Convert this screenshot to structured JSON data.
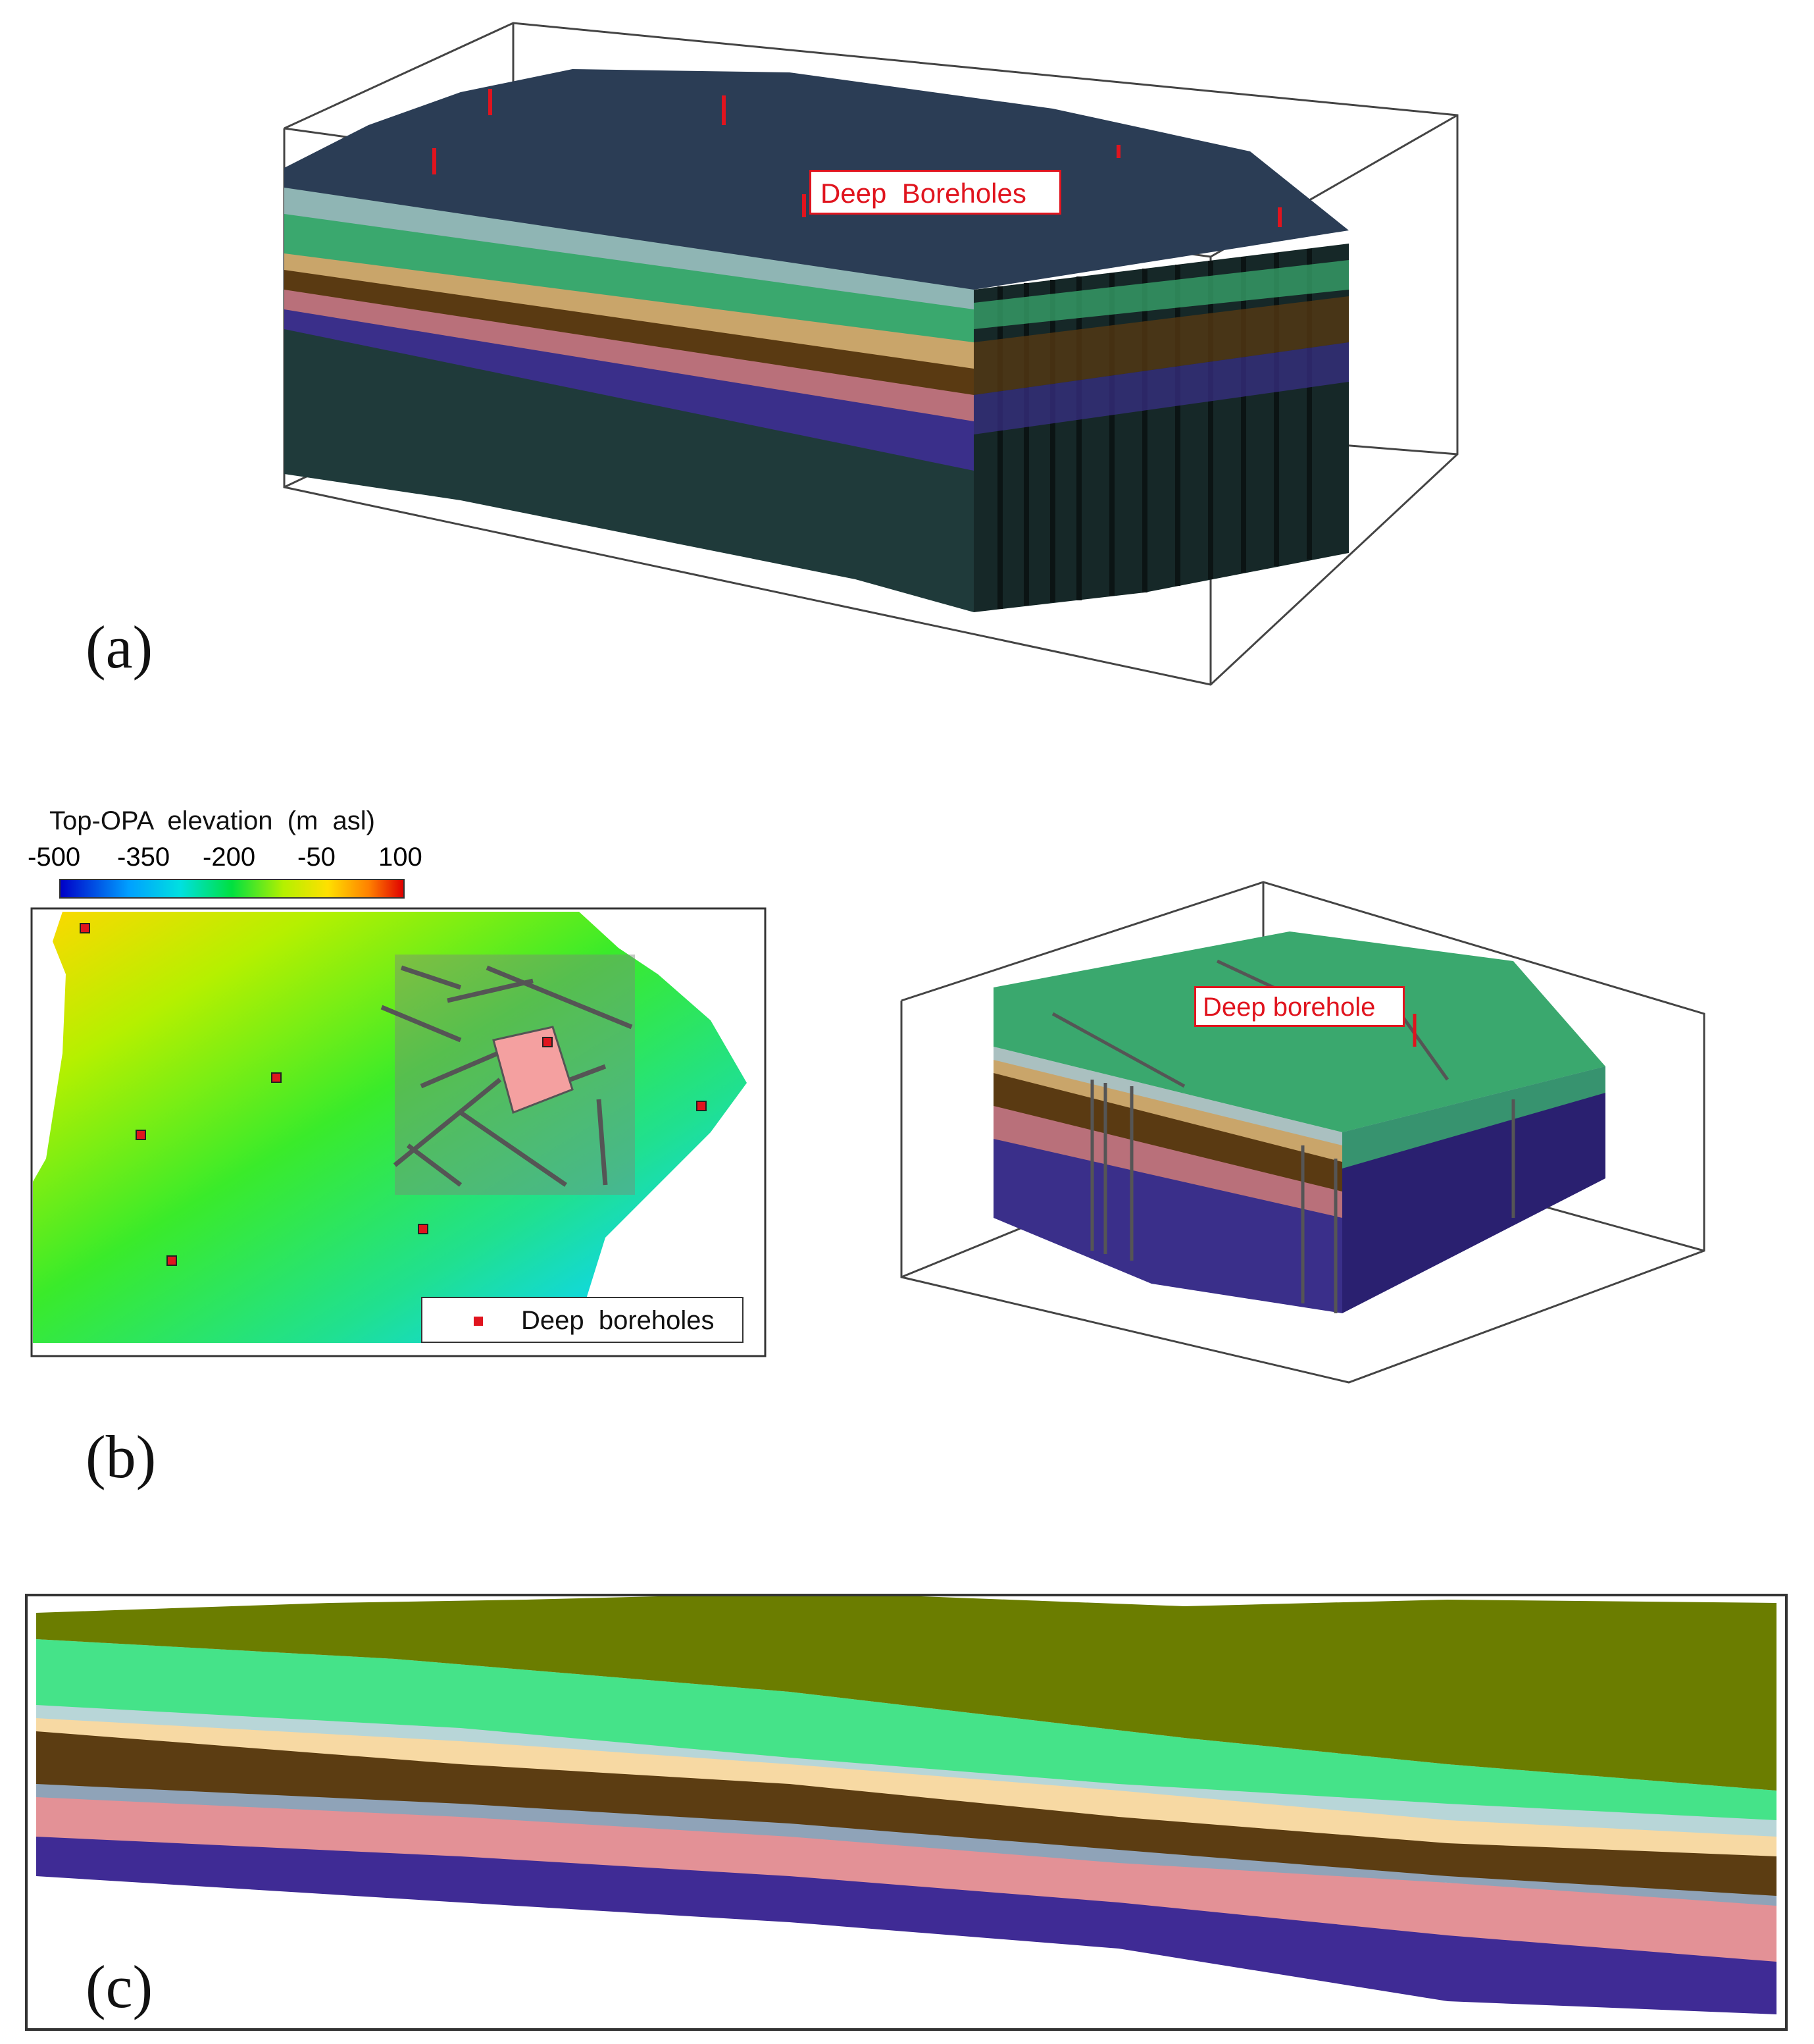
{
  "panel_a": {
    "label": "(a)",
    "annotation": "Deep  Boreholes",
    "colors": {
      "top": "#2b3d55",
      "layer_pale": "#8fb5b4",
      "layer_green": "#3aa86e",
      "layer_brown": "#5a3a12",
      "layer_tan": "#c9a56a",
      "layer_pink": "#b9707a",
      "layer_purple": "#3a2f8a",
      "base": "#1f3a3a",
      "borehole": "#e0141e"
    }
  },
  "panel_b": {
    "label": "(b)",
    "colorbar_title": "Top-OPA  elevation  (m  asl)",
    "colorbar_ticks": [
      "-500",
      "-350",
      "-200",
      "-50",
      "100"
    ],
    "legend_label": "Deep  boreholes",
    "annotation_3d": "Deep borehole",
    "colors": {
      "top": "#3aa86e",
      "borehole": "#e0141e",
      "fracture": "#666666"
    }
  },
  "panel_c": {
    "label": "(c)",
    "colors": {
      "olive": "#6b7d00",
      "mint": "#45e389",
      "pale_blue": "#b8d6d8",
      "tan": "#f7d9a3",
      "brown": "#5c3d12",
      "grey_blue": "#8fa3b8",
      "pink": "#e39196",
      "purple": "#3f2b95"
    }
  }
}
